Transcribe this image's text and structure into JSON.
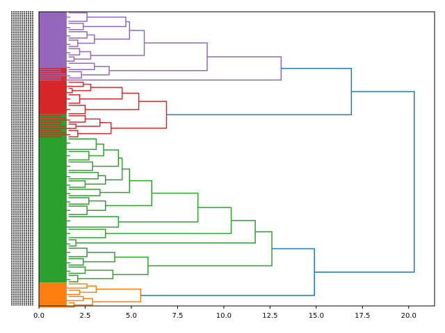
{
  "chart_data": {
    "type": "dendrogram",
    "title": "",
    "xlabel": "",
    "ylabel": "",
    "orientation": "right",
    "xlim": [
      0,
      21.4
    ],
    "xticks": [
      0.0,
      2.5,
      5.0,
      7.5,
      10.0,
      12.5,
      15.0,
      17.5,
      20.0
    ],
    "xtick_labels": [
      "0.0",
      "2.5",
      "5.0",
      "7.5",
      "10.0",
      "12.5",
      "15.0",
      "17.5",
      "20.0"
    ],
    "leaf_labels_note": "Leaf labels are densely overlapped and illegible",
    "link_color_above_threshold": "#1f77b4",
    "clusters": [
      {
        "name": "cluster-purple",
        "color": "#9467bd",
        "leaf_fraction": 0.19
      },
      {
        "name": "cluster-red",
        "color": "#d62728",
        "leaf_fraction": 0.155
      },
      {
        "name": "cluster-green",
        "color": "#2ca02c",
        "leaf_fraction": 0.575
      },
      {
        "name": "cluster-orange",
        "color": "#ff7f0e",
        "leaf_fraction": 0.08
      }
    ],
    "root": {
      "h": 20.3,
      "c": "#1f77b4",
      "children": [
        {
          "h": 16.9,
          "c": "#1f77b4",
          "children": [
            {
              "h": 13.1,
              "c": "#9467bd",
              "children": [
                {
                  "h": 9.1,
                  "c": "#9467bd",
                  "children": [
                    {
                      "h": 5.7,
                      "c": "#9467bd",
                      "children": [
                        {
                          "h": 4.9,
                          "c": "#9467bd",
                          "children": [
                            {
                              "h": 4.7,
                              "c": "#9467bd",
                              "children": [
                                {
                                  "h": 2.6,
                                  "c": "#9467bd",
                                  "leaves": 5
                                },
                                {
                                  "h": 2.4,
                                  "c": "#9467bd",
                                  "leaves": 4
                                }
                              ]
                            },
                            {
                              "h": 3.0,
                              "c": "#9467bd",
                              "children": [
                                {
                                  "h": 2.6,
                                  "c": "#9467bd",
                                  "leaves": 4
                                },
                                {
                                  "h": 2.1,
                                  "c": "#9467bd",
                                  "leaves": 4
                                }
                              ]
                            }
                          ]
                        },
                        {
                          "h": 2.8,
                          "c": "#9467bd",
                          "children": [
                            {
                              "h": 2.2,
                              "c": "#9467bd",
                              "leaves": 4
                            },
                            {
                              "h": 1.9,
                              "c": "#9467bd",
                              "leaves": 3
                            }
                          ]
                        }
                      ]
                    },
                    {
                      "h": 3.8,
                      "c": "#9467bd",
                      "children": [
                        {
                          "h": 3.0,
                          "c": "#9467bd",
                          "leaves": 4
                        },
                        {
                          "h": 2.3,
                          "c": "#9467bd",
                          "leaves": 4
                        }
                      ]
                    }
                  ]
                },
                {
                  "h": 3.8,
                  "c": "#9467bd",
                  "leaves": 0,
                  "empty": true
                }
              ]
            },
            {
              "h": 6.9,
              "c": "#d62728",
              "children": [
                {
                  "h": 5.4,
                  "c": "#d62728",
                  "children": [
                    {
                      "h": 4.5,
                      "c": "#d62728",
                      "children": [
                        {
                          "h": 2.8,
                          "c": "#d62728",
                          "children": [
                            {
                              "h": 2.4,
                              "c": "#d62728",
                              "leaves": 3
                            },
                            {
                              "h": 1.8,
                              "c": "#d62728",
                              "leaves": 3
                            }
                          ]
                        },
                        {
                          "h": 2.2,
                          "c": "#d62728",
                          "leaves": 5
                        }
                      ]
                    },
                    {
                      "h": 2.5,
                      "c": "#d62728",
                      "leaves": 5
                    }
                  ]
                },
                {
                  "h": 3.9,
                  "c": "#d62728",
                  "children": [
                    {
                      "h": 3.3,
                      "c": "#d62728",
                      "children": [
                        {
                          "h": 2.5,
                          "c": "#d62728",
                          "leaves": 4
                        },
                        {
                          "h": 2.0,
                          "c": "#d62728",
                          "leaves": 3
                        }
                      ]
                    },
                    {
                      "h": 2.1,
                      "c": "#d62728",
                      "leaves": 4
                    }
                  ]
                }
              ]
            }
          ]
        },
        {
          "h": 14.9,
          "c": "#1f77b4",
          "children": [
            {
              "h": 12.6,
              "c": "#2ca02c",
              "children": [
                {
                  "h": 11.7,
                  "c": "#2ca02c",
                  "children": [
                    {
                      "h": 10.4,
                      "c": "#2ca02c",
                      "children": [
                        {
                          "h": 8.6,
                          "c": "#2ca02c",
                          "children": [
                            {
                              "h": 6.1,
                              "c": "#2ca02c",
                              "children": [
                                {
                                  "h": 4.9,
                                  "c": "#2ca02c",
                                  "children": [
                                    {
                                      "h": 4.5,
                                      "c": "#2ca02c",
                                      "children": [
                                        {
                                          "h": 4.3,
                                          "c": "#2ca02c",
                                          "children": [
                                            {
                                              "h": 3.5,
                                              "c": "#2ca02c",
                                              "children": [
                                                {
                                                  "h": 3.1,
                                                  "c": "#2ca02c",
                                                  "leaves": 6
                                                },
                                                {
                                                  "h": 2.7,
                                                  "c": "#2ca02c",
                                                  "leaves": 5
                                                }
                                              ]
                                            },
                                            {
                                              "h": 2.9,
                                              "c": "#2ca02c",
                                              "leaves": 5
                                            }
                                          ]
                                        },
                                        {
                                          "h": 3.6,
                                          "c": "#2ca02c",
                                          "children": [
                                            {
                                              "h": 3.2,
                                              "c": "#2ca02c",
                                              "leaves": 4
                                            },
                                            {
                                              "h": 2.5,
                                              "c": "#2ca02c",
                                              "leaves": 4
                                            }
                                          ]
                                        }
                                      ]
                                    },
                                    {
                                      "h": 3.3,
                                      "c": "#2ca02c",
                                      "leaves": 4
                                    }
                                  ]
                                },
                                {
                                  "h": 3.6,
                                  "c": "#2ca02c",
                                  "children": [
                                    {
                                      "h": 2.7,
                                      "c": "#2ca02c",
                                      "leaves": 4
                                    },
                                    {
                                      "h": 2.6,
                                      "c": "#2ca02c",
                                      "leaves": 5
                                    }
                                  ]
                                }
                              ]
                            },
                            {
                              "h": 4.3,
                              "c": "#2ca02c",
                              "leaves": 6
                            }
                          ]
                        },
                        {
                          "h": 3.6,
                          "c": "#2ca02c",
                          "leaves": 5
                        }
                      ]
                    },
                    {
                      "h": 2.0,
                      "c": "#2ca02c",
                      "leaves": 4
                    }
                  ]
                },
                {
                  "h": 5.9,
                  "c": "#2ca02c",
                  "children": [
                    {
                      "h": 4.1,
                      "c": "#2ca02c",
                      "children": [
                        {
                          "h": 2.6,
                          "c": "#2ca02c",
                          "leaves": 5
                        },
                        {
                          "h": 2.4,
                          "c": "#2ca02c",
                          "leaves": 4
                        }
                      ]
                    },
                    {
                      "h": 4.0,
                      "c": "#2ca02c",
                      "children": [
                        {
                          "h": 2.5,
                          "c": "#2ca02c",
                          "leaves": 4
                        },
                        {
                          "h": 2.1,
                          "c": "#2ca02c",
                          "leaves": 4
                        }
                      ]
                    }
                  ]
                }
              ]
            },
            {
              "h": 5.5,
              "c": "#ff7f0e",
              "children": [
                {
                  "h": 3.1,
                  "c": "#ff7f0e",
                  "children": [
                    {
                      "h": 2.6,
                      "c": "#ff7f0e",
                      "leaves": 3
                    },
                    {
                      "h": 2.2,
                      "c": "#ff7f0e",
                      "leaves": 3
                    }
                  ]
                },
                {
                  "h": 2.9,
                  "c": "#ff7f0e",
                  "children": [
                    {
                      "h": 2.4,
                      "c": "#ff7f0e",
                      "leaves": 3
                    },
                    {
                      "h": 1.9,
                      "c": "#ff7f0e",
                      "leaves": 3
                    }
                  ]
                }
              ]
            }
          ]
        }
      ]
    }
  }
}
